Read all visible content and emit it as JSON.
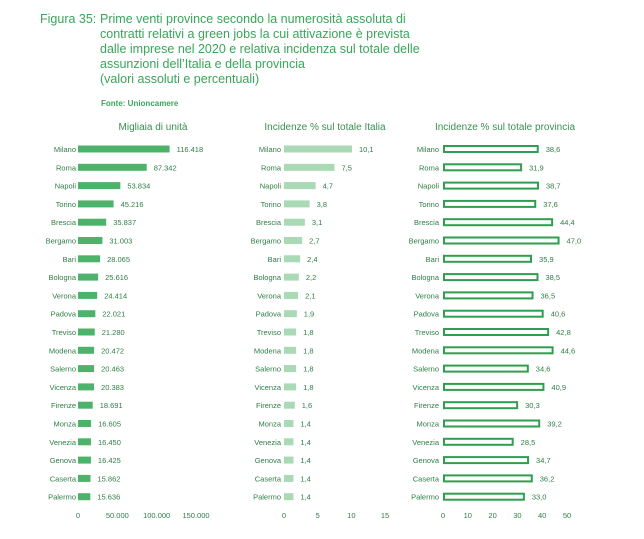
{
  "header": {
    "figure_label": "Figura 35:",
    "title": "Prime venti province secondo la numerosità assoluta di\ncontratti relativi a green jobs la cui attivazione è prevista\ndalle imprese nel 2020 e relativa incidenza sul totale delle\nassunzioni dell’Italia e della provincia\n(valori assoluti e percentuali)",
    "source": "Fonte: Unioncamere"
  },
  "colors": {
    "title": "#3aa55a",
    "bar_solid": "#4db36a",
    "bar_light": "#a9d9b5",
    "bar_outline": "#2f9e4f",
    "text": "#2e7d45"
  },
  "chart_data": [
    {
      "type": "bar",
      "orientation": "horizontal",
      "title": "Migliaia di unità",
      "style": "solid",
      "categories": [
        "Milano",
        "Roma",
        "Napoli",
        "Torino",
        "Brescia",
        "Bergamo",
        "Bari",
        "Bologna",
        "Verona",
        "Padova",
        "Treviso",
        "Modena",
        "Salerno",
        "Vicenza",
        "Firenze",
        "Monza",
        "Venezia",
        "Genova",
        "Caserta",
        "Palermo"
      ],
      "values": [
        116418,
        87342,
        53834,
        45216,
        35837,
        31003,
        28065,
        25616,
        24414,
        22021,
        21280,
        20472,
        20463,
        20383,
        18691,
        16605,
        16450,
        16425,
        15862,
        15636
      ],
      "labels": [
        "116.418",
        "87.342",
        "53.834",
        "45.216",
        "35.837",
        "31.003",
        "28.065",
        "25.616",
        "24.414",
        "22.021",
        "21.280",
        "20.472",
        "20.463",
        "20.383",
        "18.691",
        "16.605",
        "16.450",
        "16.425",
        "15.862",
        "15.636"
      ],
      "xlim": [
        0,
        150000
      ],
      "ticks": [
        0,
        50000,
        100000,
        150000
      ],
      "tick_labels": [
        "0",
        "50.000",
        "100.000",
        "150.000"
      ]
    },
    {
      "type": "bar",
      "orientation": "horizontal",
      "title": "Incidenze % sul totale Italia",
      "style": "light",
      "categories": [
        "Milano",
        "Roma",
        "Napoli",
        "Torino",
        "Brescia",
        "Bergamo",
        "Bari",
        "Bologna",
        "Verona",
        "Padova",
        "Treviso",
        "Modena",
        "Salerno",
        "Vicenza",
        "Firenze",
        "Monza",
        "Venezia",
        "Genova",
        "Caserta",
        "Palermo"
      ],
      "values": [
        10.1,
        7.5,
        4.7,
        3.8,
        3.1,
        2.7,
        2.4,
        2.2,
        2.1,
        1.9,
        1.8,
        1.8,
        1.8,
        1.8,
        1.6,
        1.4,
        1.4,
        1.4,
        1.4,
        1.4
      ],
      "labels": [
        "10,1",
        "7,5",
        "4,7",
        "3,8",
        "3,1",
        "2,7",
        "2,4",
        "2,2",
        "2,1",
        "1,9",
        "1,8",
        "1,8",
        "1,8",
        "1,8",
        "1,6",
        "1,4",
        "1,4",
        "1,4",
        "1,4",
        "1,4"
      ],
      "xlim": [
        0,
        15
      ],
      "ticks": [
        0,
        5,
        10,
        15
      ],
      "tick_labels": [
        "0",
        "5",
        "10",
        "15"
      ]
    },
    {
      "type": "bar",
      "orientation": "horizontal",
      "title": "Incidenze % sul totale provincia",
      "style": "outline",
      "categories": [
        "Milano",
        "Roma",
        "Napoli",
        "Torino",
        "Brescia",
        "Bergamo",
        "Bari",
        "Bologna",
        "Verona",
        "Padova",
        "Treviso",
        "Modena",
        "Salerno",
        "Vicenza",
        "Firenze",
        "Monza",
        "Venezia",
        "Genova",
        "Caserta",
        "Palermo"
      ],
      "values": [
        38.6,
        31.9,
        38.7,
        37.6,
        44.4,
        47.0,
        35.9,
        38.5,
        36.5,
        40.6,
        42.8,
        44.6,
        34.6,
        40.9,
        30.3,
        39.2,
        28.5,
        34.7,
        36.2,
        33.0
      ],
      "labels": [
        "38,6",
        "31,9",
        "38,7",
        "37,6",
        "44,4",
        "47,0",
        "35,9",
        "38,5",
        "36,5",
        "40,6",
        "42,8",
        "44,6",
        "34,6",
        "40,9",
        "30,3",
        "39,2",
        "28,5",
        "34,7",
        "36,2",
        "33,0"
      ],
      "xlim": [
        0,
        50
      ],
      "ticks": [
        0,
        10,
        20,
        30,
        40,
        50
      ],
      "tick_labels": [
        "0",
        "10",
        "20",
        "30",
        "40",
        "50"
      ]
    }
  ]
}
